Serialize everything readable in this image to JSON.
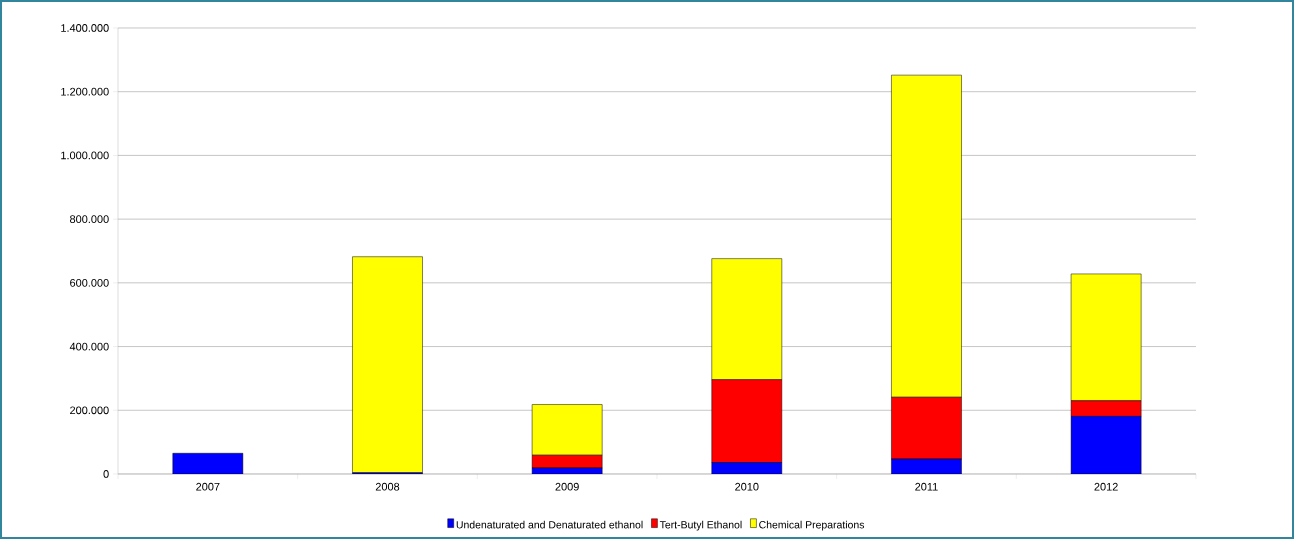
{
  "chart_data": {
    "type": "bar",
    "stacked": true,
    "categories": [
      "2007",
      "2008",
      "2009",
      "2010",
      "2011",
      "2012"
    ],
    "series": [
      {
        "name": "Undenaturated and Denaturated ethanol",
        "color": "#0000ff",
        "values": [
          65000,
          4000,
          19000,
          36000,
          47000,
          181000
        ]
      },
      {
        "name": "Tert-Butyl Ethanol",
        "color": "#ff0000",
        "values": [
          0,
          0,
          40000,
          260000,
          194000,
          49000
        ]
      },
      {
        "name": "Chemical Preparations",
        "color": "#ffff00",
        "values": [
          0,
          678000,
          159000,
          380000,
          1011000,
          398000
        ]
      }
    ],
    "ylim": [
      0,
      1400000
    ],
    "yticks": [
      {
        "value": 0,
        "label": "0"
      },
      {
        "value": 200000,
        "label": "200.000"
      },
      {
        "value": 400000,
        "label": "400.000"
      },
      {
        "value": 600000,
        "label": "600.000"
      },
      {
        "value": 800000,
        "label": "800.000"
      },
      {
        "value": 1000000,
        "label": "1.000.000"
      },
      {
        "value": 1200000,
        "label": "1.200.000"
      },
      {
        "value": 1400000,
        "label": "1.400.000"
      }
    ],
    "grid": "y",
    "legend": "bottom"
  }
}
